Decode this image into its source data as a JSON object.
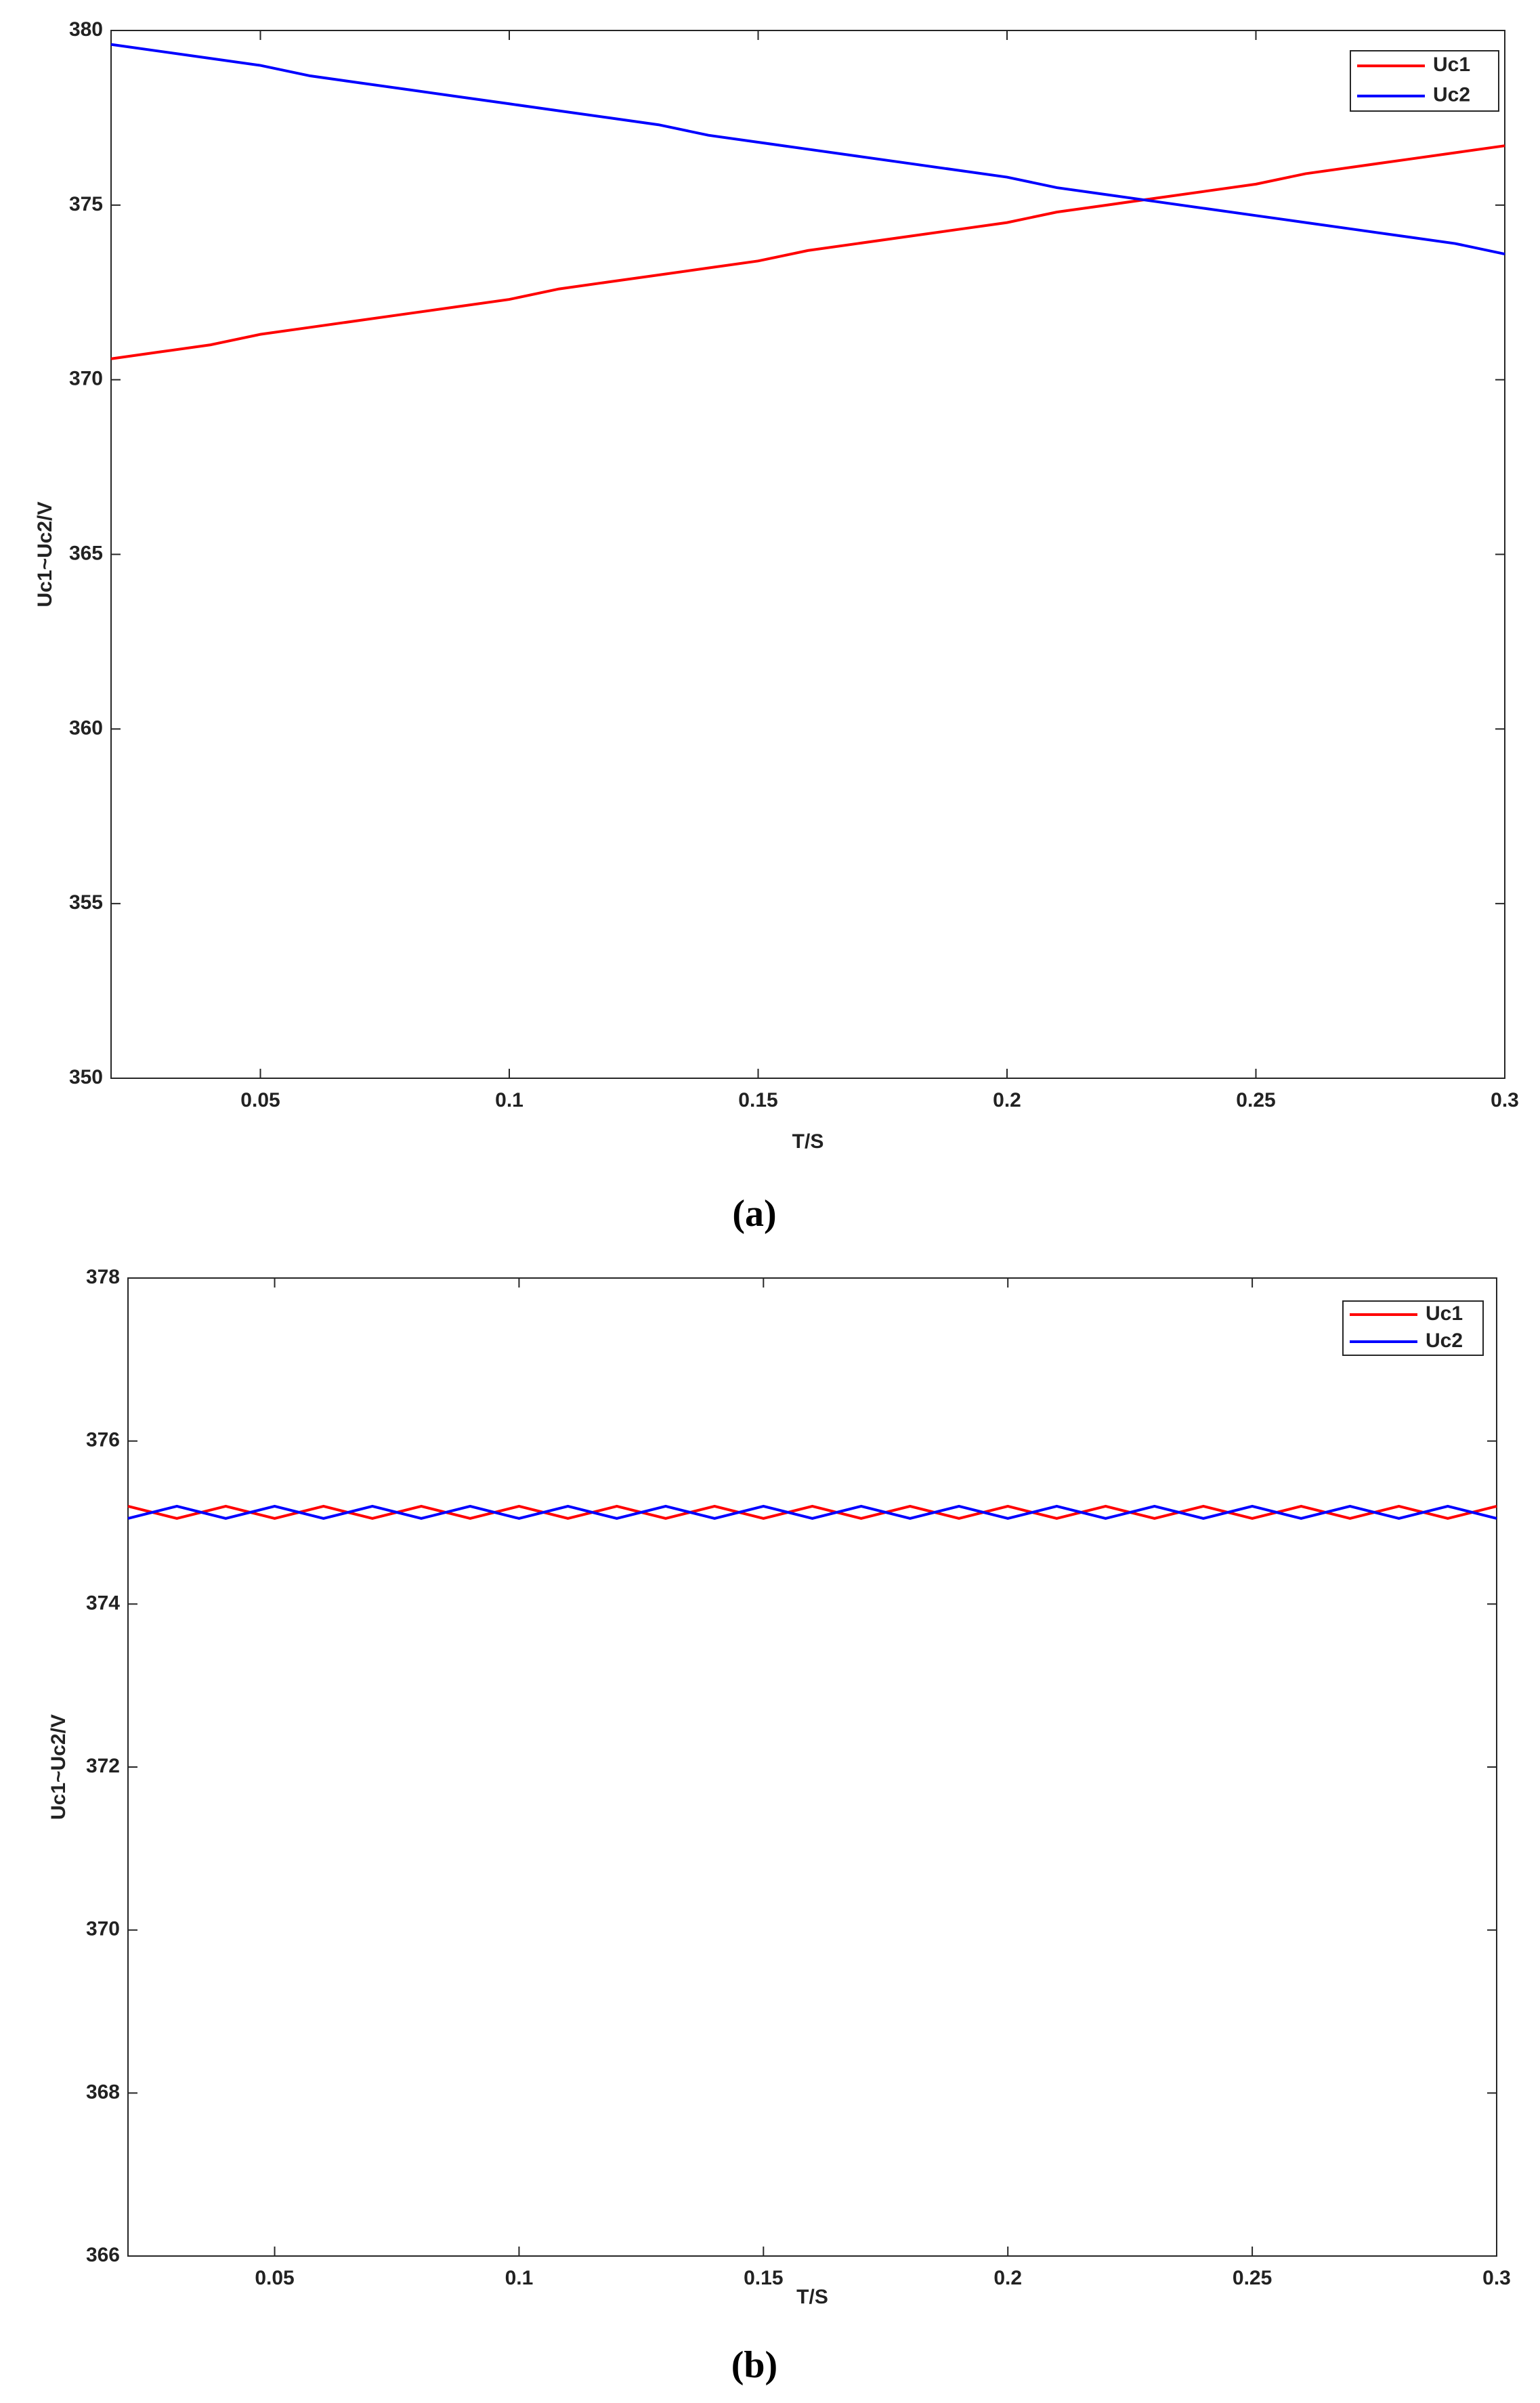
{
  "chart_data": [
    {
      "type": "line",
      "caption": "(a)",
      "xlabel": "T/S",
      "ylabel": "Uc1~Uc2/V",
      "x": [
        0.02,
        0.03,
        0.04,
        0.05,
        0.06,
        0.07,
        0.08,
        0.09,
        0.1,
        0.11,
        0.12,
        0.13,
        0.14,
        0.15,
        0.16,
        0.17,
        0.18,
        0.19,
        0.2,
        0.21,
        0.22,
        0.23,
        0.24,
        0.25,
        0.26,
        0.27,
        0.28,
        0.29,
        0.3
      ],
      "series": [
        {
          "name": "Uc1",
          "color": "#ff0000",
          "values": [
            370.6,
            370.8,
            371.0,
            371.3,
            371.5,
            371.7,
            371.9,
            372.1,
            372.3,
            372.6,
            372.8,
            373.0,
            373.2,
            373.4,
            373.7,
            373.9,
            374.1,
            374.3,
            374.5,
            374.8,
            375.0,
            375.2,
            375.4,
            375.6,
            375.9,
            376.1,
            376.3,
            376.5,
            376.7
          ]
        },
        {
          "name": "Uc2",
          "color": "#0000ff",
          "values": [
            379.6,
            379.4,
            379.2,
            379.0,
            378.7,
            378.5,
            378.3,
            378.1,
            377.9,
            377.7,
            377.5,
            377.3,
            377.0,
            376.8,
            376.6,
            376.4,
            376.2,
            376.0,
            375.8,
            375.5,
            375.3,
            375.1,
            374.9,
            374.7,
            374.5,
            374.3,
            374.1,
            373.9,
            373.6
          ]
        }
      ],
      "xlim": [
        0.02,
        0.3
      ],
      "xticks": [
        0.05,
        0.1,
        0.15,
        0.2,
        0.25,
        0.3
      ],
      "ylim": [
        350,
        380
      ],
      "yticks": [
        350,
        355,
        360,
        365,
        370,
        375,
        380
      ],
      "legend": "upper right"
    },
    {
      "type": "line",
      "caption": "(b)",
      "xlabel": "T/S",
      "ylabel": "Uc1~Uc2/V",
      "x": [
        0.02,
        0.03,
        0.04,
        0.05,
        0.06,
        0.07,
        0.08,
        0.09,
        0.1,
        0.11,
        0.12,
        0.13,
        0.14,
        0.15,
        0.16,
        0.17,
        0.18,
        0.19,
        0.2,
        0.21,
        0.22,
        0.23,
        0.24,
        0.25,
        0.26,
        0.27,
        0.28,
        0.29,
        0.3
      ],
      "series": [
        {
          "name": "Uc1",
          "color": "#ff0000",
          "values": [
            375.2,
            375.05,
            375.2,
            375.05,
            375.2,
            375.05,
            375.2,
            375.05,
            375.2,
            375.05,
            375.2,
            375.05,
            375.2,
            375.05,
            375.2,
            375.05,
            375.2,
            375.05,
            375.2,
            375.05,
            375.2,
            375.05,
            375.2,
            375.05,
            375.2,
            375.05,
            375.2,
            375.05,
            375.2
          ]
        },
        {
          "name": "Uc2",
          "color": "#0000ff",
          "values": [
            375.05,
            375.2,
            375.05,
            375.2,
            375.05,
            375.2,
            375.05,
            375.2,
            375.05,
            375.2,
            375.05,
            375.2,
            375.05,
            375.2,
            375.05,
            375.2,
            375.05,
            375.2,
            375.05,
            375.2,
            375.05,
            375.2,
            375.05,
            375.2,
            375.05,
            375.2,
            375.05,
            375.2,
            375.05
          ]
        }
      ],
      "xlim": [
        0.02,
        0.3
      ],
      "xticks": [
        0.05,
        0.1,
        0.15,
        0.2,
        0.25,
        0.3
      ],
      "ylim": [
        366,
        378
      ],
      "yticks": [
        366,
        368,
        370,
        372,
        374,
        376,
        378
      ],
      "legend": "upper right"
    }
  ]
}
